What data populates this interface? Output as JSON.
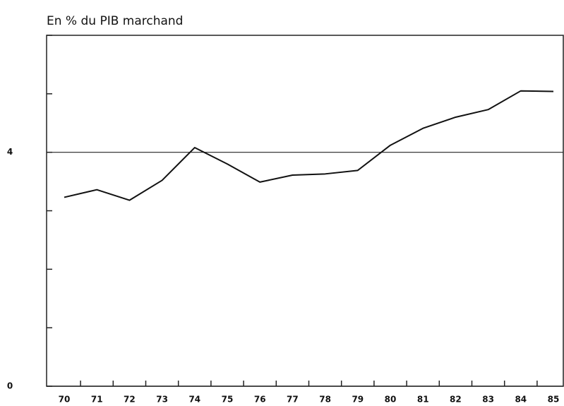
{
  "chart_data": {
    "type": "line",
    "title": "En % du PIB marchand",
    "categories": [
      "70",
      "71",
      "72",
      "73",
      "74",
      "75",
      "76",
      "77",
      "78",
      "79",
      "80",
      "81",
      "82",
      "83",
      "84",
      "85"
    ],
    "values": [
      3.23,
      3.36,
      3.18,
      3.52,
      4.08,
      3.8,
      3.49,
      3.61,
      3.63,
      3.69,
      4.12,
      4.41,
      4.6,
      4.73,
      5.05,
      5.04
    ],
    "color": "#111111",
    "ylim": [
      0,
      6
    ],
    "yticks": [
      0,
      4
    ],
    "y_minor_ticks": [
      1,
      2,
      3,
      5,
      6
    ],
    "grid": true
  }
}
